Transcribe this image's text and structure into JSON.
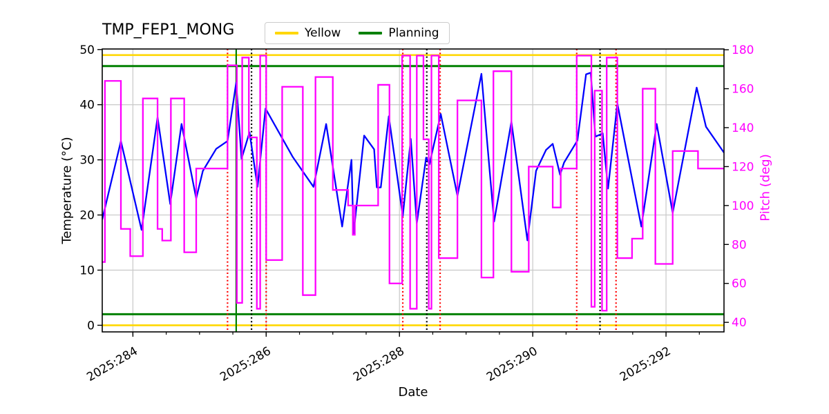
{
  "title": "TMP_FEP1_MONG",
  "legend": [
    {
      "label": "Yellow",
      "color": "#ffd700"
    },
    {
      "label": "Planning",
      "color": "#008000"
    }
  ],
  "chart_data": {
    "type": "line",
    "title": "TMP_FEP1_MONG",
    "xlabel": "Date",
    "ylabel_left": "Temperature (°C)",
    "ylabel_right": "Pitch (deg)",
    "grid": true,
    "legend_position": "top center",
    "xlim": [
      283.54,
      292.87
    ],
    "ylim_left": [
      -1.2,
      50.1
    ],
    "ylim_right": [
      35.1,
      180.4
    ],
    "x_major_ticks": [
      {
        "value": 284,
        "label": "2025:284"
      },
      {
        "value": 286,
        "label": "2025:286"
      },
      {
        "value": 288,
        "label": "2025:288"
      },
      {
        "value": 290,
        "label": "2025:290"
      },
      {
        "value": 292,
        "label": "2025:292"
      }
    ],
    "x_minor_step": 0.5,
    "y_left_ticks": [
      0,
      10,
      20,
      30,
      40,
      50
    ],
    "y_right_ticks": [
      40,
      60,
      80,
      100,
      120,
      140,
      160,
      180
    ],
    "colors": {
      "temperature": "#0000ff",
      "pitch": "#ff00ff",
      "yellow_limit": "#ffd700",
      "planning_limit": "#008000",
      "red_event": "#ff0000",
      "black_event": "#000000",
      "grid": "#c8c8c8",
      "spine": "#000000",
      "right_tick_labels": "#ff00ff"
    },
    "hlines": [
      {
        "y": 49,
        "color": "#ffd700",
        "name": "yellow-upper-limit"
      },
      {
        "y": 47,
        "color": "#008000",
        "name": "planning-upper-limit"
      },
      {
        "y": 2,
        "color": "#008000",
        "name": "planning-lower-limit"
      },
      {
        "y": 0,
        "color": "#ffd700",
        "name": "yellow-lower-limit"
      }
    ],
    "vlines": [
      {
        "x": 285.42,
        "color": "#ff0000",
        "style": "dotted"
      },
      {
        "x": 285.55,
        "color": "#008000",
        "style": "solid"
      },
      {
        "x": 285.78,
        "color": "#000000",
        "style": "dotted"
      },
      {
        "x": 286.0,
        "color": "#ff0000",
        "style": "dotted"
      },
      {
        "x": 288.05,
        "color": "#ff0000",
        "style": "dotted"
      },
      {
        "x": 288.41,
        "color": "#000000",
        "style": "dotted"
      },
      {
        "x": 288.61,
        "color": "#ff0000",
        "style": "dotted"
      },
      {
        "x": 290.66,
        "color": "#ff0000",
        "style": "dotted"
      },
      {
        "x": 291.01,
        "color": "#000000",
        "style": "dotted"
      },
      {
        "x": 291.25,
        "color": "#ff0000",
        "style": "dotted"
      }
    ],
    "series": [
      {
        "name": "temperature",
        "axis": "left",
        "color": "#0000ff",
        "points": [
          [
            283.54,
            19.2
          ],
          [
            283.82,
            33.4
          ],
          [
            284.13,
            17.3
          ],
          [
            284.37,
            37.7
          ],
          [
            284.56,
            22.0
          ],
          [
            284.73,
            36.5
          ],
          [
            284.95,
            23.0
          ],
          [
            285.05,
            28.0
          ],
          [
            285.25,
            32.0
          ],
          [
            285.42,
            33.4
          ],
          [
            285.55,
            44.0
          ],
          [
            285.63,
            30.2
          ],
          [
            285.75,
            35.0
          ],
          [
            285.87,
            25.1
          ],
          [
            285.99,
            39.3
          ],
          [
            286.4,
            30.5
          ],
          [
            286.71,
            25.1
          ],
          [
            286.9,
            36.5
          ],
          [
            287.14,
            17.9
          ],
          [
            287.28,
            30.0
          ],
          [
            287.31,
            16.5
          ],
          [
            287.47,
            34.4
          ],
          [
            287.62,
            31.9
          ],
          [
            287.66,
            25.0
          ],
          [
            287.72,
            25.0
          ],
          [
            287.84,
            37.9
          ],
          [
            288.05,
            19.8
          ],
          [
            288.17,
            33.8
          ],
          [
            288.26,
            18.5
          ],
          [
            288.4,
            30.4
          ],
          [
            288.45,
            29.2
          ],
          [
            288.62,
            38.3
          ],
          [
            288.87,
            23.5
          ],
          [
            289.23,
            45.6
          ],
          [
            289.32,
            32.7
          ],
          [
            289.42,
            18.8
          ],
          [
            289.68,
            36.9
          ],
          [
            289.92,
            15.4
          ],
          [
            290.05,
            28.0
          ],
          [
            290.2,
            31.8
          ],
          [
            290.3,
            32.9
          ],
          [
            290.41,
            27.3
          ],
          [
            290.47,
            29.5
          ],
          [
            290.67,
            33.5
          ],
          [
            290.8,
            45.5
          ],
          [
            290.87,
            45.8
          ],
          [
            290.94,
            34.2
          ],
          [
            291.05,
            34.8
          ],
          [
            291.13,
            24.8
          ],
          [
            291.27,
            40.2
          ],
          [
            291.63,
            17.9
          ],
          [
            291.86,
            36.5
          ],
          [
            292.1,
            20.4
          ],
          [
            292.46,
            43.1
          ],
          [
            292.6,
            36.0
          ],
          [
            292.87,
            31.3
          ]
        ]
      },
      {
        "name": "pitch",
        "axis": "right",
        "color": "#ff00ff",
        "step": true,
        "end": 292.87,
        "steps": [
          [
            283.54,
            71
          ],
          [
            283.58,
            164
          ],
          [
            283.82,
            88
          ],
          [
            283.96,
            74
          ],
          [
            284.15,
            155
          ],
          [
            284.37,
            88
          ],
          [
            284.44,
            82
          ],
          [
            284.57,
            155
          ],
          [
            284.77,
            76
          ],
          [
            284.95,
            119
          ],
          [
            285.42,
            172
          ],
          [
            285.56,
            50
          ],
          [
            285.64,
            176
          ],
          [
            285.74,
            135
          ],
          [
            285.86,
            47
          ],
          [
            285.91,
            177
          ],
          [
            286.0,
            72
          ],
          [
            286.24,
            161
          ],
          [
            286.55,
            54
          ],
          [
            286.74,
            166
          ],
          [
            287.0,
            108
          ],
          [
            287.23,
            100
          ],
          [
            287.3,
            85
          ],
          [
            287.33,
            100
          ],
          [
            287.68,
            162
          ],
          [
            287.85,
            60
          ],
          [
            288.04,
            177
          ],
          [
            288.16,
            47
          ],
          [
            288.26,
            177
          ],
          [
            288.36,
            134
          ],
          [
            288.44,
            47
          ],
          [
            288.48,
            177
          ],
          [
            288.59,
            73
          ],
          [
            288.87,
            154
          ],
          [
            289.23,
            63
          ],
          [
            289.41,
            169
          ],
          [
            289.68,
            66
          ],
          [
            289.94,
            120
          ],
          [
            290.3,
            99
          ],
          [
            290.42,
            119
          ],
          [
            290.66,
            177
          ],
          [
            290.88,
            48
          ],
          [
            290.93,
            159
          ],
          [
            291.04,
            46
          ],
          [
            291.11,
            176
          ],
          [
            291.27,
            73
          ],
          [
            291.49,
            83
          ],
          [
            291.65,
            160
          ],
          [
            291.84,
            70
          ],
          [
            292.1,
            128
          ],
          [
            292.48,
            119
          ]
        ]
      }
    ]
  }
}
